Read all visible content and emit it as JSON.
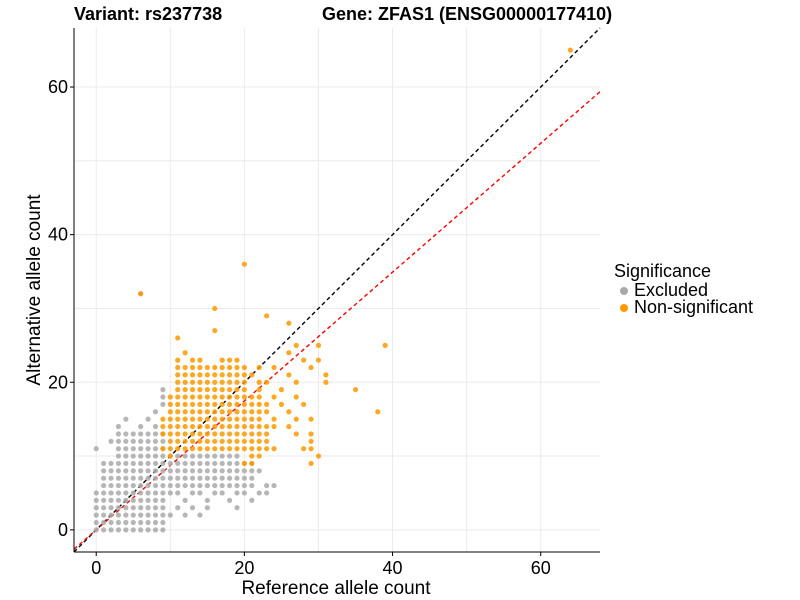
{
  "titles": {
    "variant": "Variant: rs237738",
    "gene": "Gene: ZFAS1 (ENSG00000177410)"
  },
  "legend": {
    "title": "Significance",
    "items": [
      {
        "label": "Excluded",
        "color": "#a9a9a9"
      },
      {
        "label": "Non-significant",
        "color": "#ff9900"
      }
    ]
  },
  "chart_data": {
    "type": "scatter",
    "xlabel": "Reference allele count",
    "ylabel": "Alternative allele count",
    "xlim": [
      -3,
      68
    ],
    "ylim": [
      -3,
      68
    ],
    "xticks": [
      0,
      20,
      40,
      60
    ],
    "yticks": [
      0,
      20,
      40,
      60
    ],
    "grid": true,
    "legend_position": "right",
    "reference_lines": [
      {
        "name": "identity",
        "slope": 1,
        "intercept": 0,
        "color": "#000000",
        "style": "dashed"
      },
      {
        "name": "fitted",
        "slope": 0.873,
        "intercept": 0,
        "color": "#ff0000",
        "style": "dashed"
      }
    ],
    "series": [
      {
        "name": "Excluded",
        "color": "#a9a9a9",
        "blocks": [
          {
            "x": [
              0,
              3
            ],
            "y": [
              0,
              5
            ]
          },
          {
            "x": [
              1,
              9
            ],
            "y": [
              0,
              9
            ]
          },
          {
            "x": [
              3,
              9
            ],
            "y": [
              4,
              13
            ]
          },
          {
            "x": [
              10,
              21
            ],
            "y": [
              6,
              9
            ]
          },
          {
            "x": [
              10,
              19
            ],
            "y": [
              9,
              10
            ]
          }
        ],
        "points": [
          [
            0,
            11
          ],
          [
            1,
            9
          ],
          [
            2,
            12
          ],
          [
            3,
            14
          ],
          [
            4,
            15
          ],
          [
            4,
            12
          ],
          [
            5,
            13
          ],
          [
            6,
            14
          ],
          [
            6,
            32
          ],
          [
            7,
            15
          ],
          [
            8,
            16
          ],
          [
            9,
            18
          ],
          [
            9,
            19
          ],
          [
            9,
            17
          ],
          [
            8,
            14
          ],
          [
            7,
            12
          ],
          [
            5,
            10
          ],
          [
            5,
            9
          ],
          [
            4,
            9
          ],
          [
            3,
            7
          ],
          [
            2,
            8
          ],
          [
            1,
            6
          ],
          [
            2,
            5
          ],
          [
            10,
            5
          ],
          [
            11,
            5
          ],
          [
            12,
            4
          ],
          [
            13,
            5
          ],
          [
            14,
            5
          ],
          [
            15,
            4
          ],
          [
            16,
            5
          ],
          [
            17,
            5
          ],
          [
            18,
            4
          ],
          [
            19,
            5
          ],
          [
            20,
            5
          ],
          [
            21,
            6
          ],
          [
            22,
            5
          ],
          [
            23,
            5
          ],
          [
            24,
            6
          ],
          [
            22,
            8
          ],
          [
            23,
            6
          ],
          [
            11,
            3
          ],
          [
            13,
            3
          ],
          [
            15,
            3
          ],
          [
            19,
            3
          ],
          [
            10,
            2
          ],
          [
            12,
            2
          ],
          [
            14,
            2
          ],
          [
            21,
            4
          ],
          [
            23,
            5
          ]
        ]
      },
      {
        "name": "Non-significant",
        "color": "#ff9900",
        "blocks": [
          {
            "x": [
              10,
              22
            ],
            "y": [
              11,
              18
            ]
          },
          {
            "x": [
              11,
              20
            ],
            "y": [
              18,
              22
            ]
          }
        ],
        "points": [
          [
            64,
            65
          ],
          [
            20,
            36
          ],
          [
            6,
            32
          ],
          [
            16,
            30
          ],
          [
            23,
            29
          ],
          [
            16,
            27
          ],
          [
            26,
            28
          ],
          [
            11,
            26
          ],
          [
            27,
            25
          ],
          [
            30,
            25
          ],
          [
            39,
            25
          ],
          [
            12,
            24
          ],
          [
            26,
            24
          ],
          [
            28,
            23
          ],
          [
            30,
            23
          ],
          [
            29,
            22
          ],
          [
            24,
            22
          ],
          [
            31,
            21
          ],
          [
            21,
            21
          ],
          [
            26,
            21
          ],
          [
            27,
            20
          ],
          [
            31,
            20
          ],
          [
            35,
            19
          ],
          [
            25,
            19
          ],
          [
            24,
            18
          ],
          [
            27,
            18
          ],
          [
            23,
            17
          ],
          [
            25,
            17
          ],
          [
            28,
            17
          ],
          [
            23,
            16
          ],
          [
            26,
            16
          ],
          [
            38,
            16
          ],
          [
            24,
            15
          ],
          [
            27,
            15
          ],
          [
            29,
            15
          ],
          [
            23,
            14
          ],
          [
            24,
            14
          ],
          [
            26,
            14
          ],
          [
            23,
            13
          ],
          [
            27,
            13
          ],
          [
            29,
            13
          ],
          [
            23,
            12
          ],
          [
            29,
            12
          ],
          [
            23,
            11
          ],
          [
            24,
            11
          ],
          [
            28,
            11
          ],
          [
            29,
            11
          ],
          [
            22,
            10
          ],
          [
            21,
            10
          ],
          [
            30,
            10
          ],
          [
            29,
            9
          ],
          [
            9,
            15
          ],
          [
            9,
            14
          ],
          [
            9,
            13
          ],
          [
            10,
            10
          ],
          [
            21,
            9
          ],
          [
            20,
            9
          ],
          [
            11,
            23
          ],
          [
            13,
            23
          ],
          [
            14,
            23
          ],
          [
            15,
            22
          ],
          [
            17,
            23
          ],
          [
            18,
            23
          ],
          [
            19,
            23
          ],
          [
            22,
            22
          ],
          [
            22,
            20
          ],
          [
            23,
            20
          ],
          [
            22,
            19
          ],
          [
            9,
            11
          ]
        ]
      }
    ]
  }
}
